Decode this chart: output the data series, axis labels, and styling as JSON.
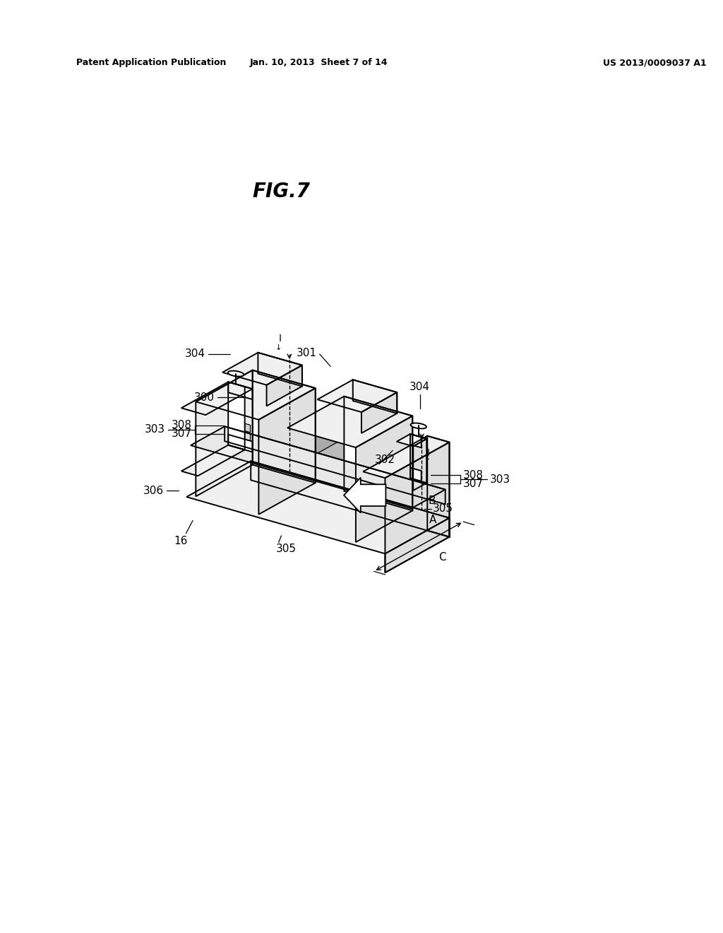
{
  "bg_color": "#ffffff",
  "line_color": "#000000",
  "header_left": "Patent Application Publication",
  "header_center": "Jan. 10, 2013  Sheet 7 of 14",
  "header_right": "US 2013/0009037 A1",
  "fig_label": "FIG.7",
  "face_top": "#f0f0f0",
  "face_front": "#ffffff",
  "face_side": "#e0e0e0",
  "face_dark": "#cccccc",
  "lw_main": 1.4,
  "lw_thin": 0.9,
  "label_fontsize": 11
}
